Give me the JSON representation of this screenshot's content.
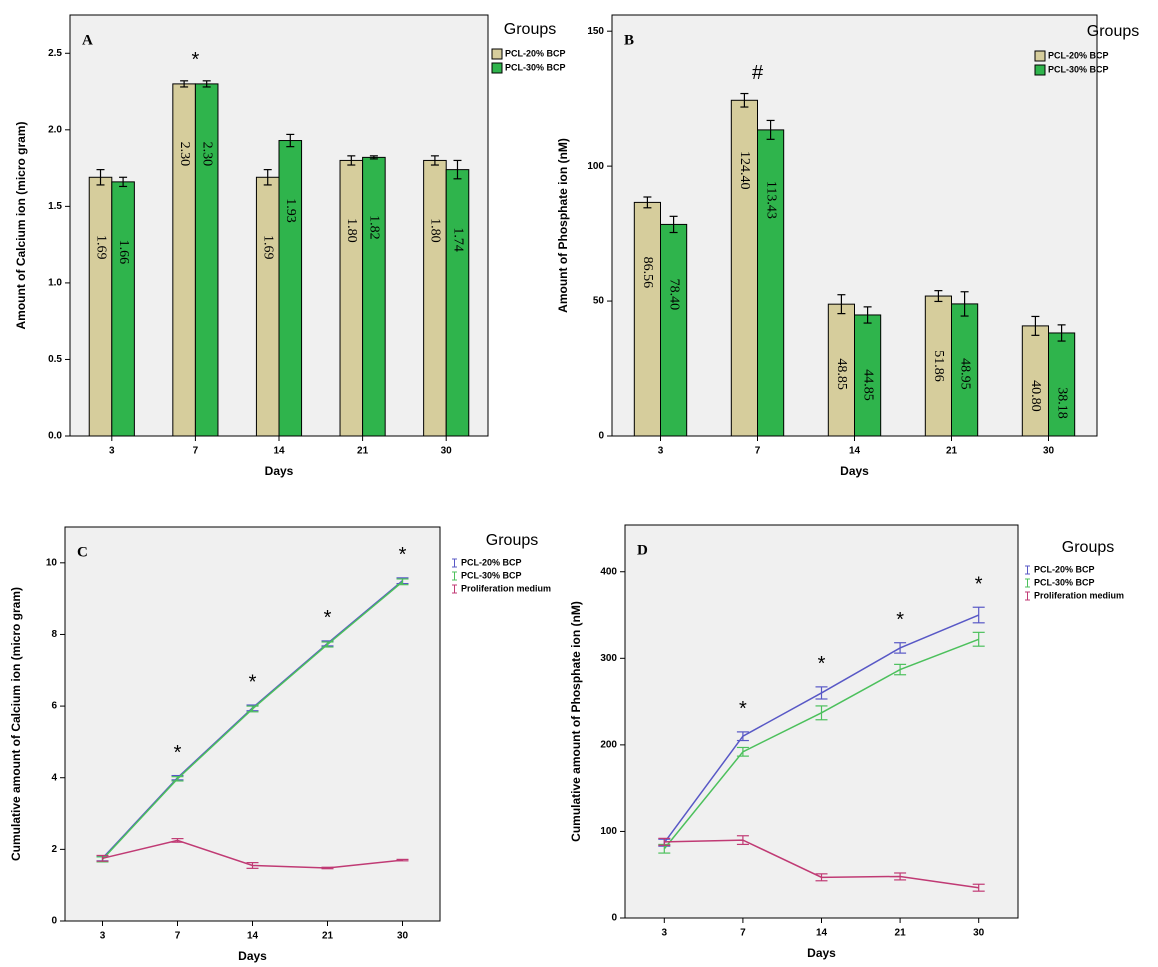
{
  "chart_data": [
    {
      "type": "bar",
      "label": "A",
      "x_label": "Days",
      "y_label": "Amount of Calcium ion (micro gram)",
      "legend_title": "Groups",
      "categories": [
        "3",
        "7",
        "14",
        "21",
        "30"
      ],
      "markers": [
        null,
        "*",
        null,
        null,
        null
      ],
      "series": [
        {
          "name": "PCL-20% BCP",
          "color": "#d6cd9c",
          "values": [
            1.69,
            2.3,
            1.69,
            1.8,
            1.8
          ],
          "value_labels": [
            "1.69",
            "2.30",
            "1.69",
            "1.80",
            "1.80"
          ],
          "errors": [
            0.05,
            0.02,
            0.05,
            0.03,
            0.03
          ]
        },
        {
          "name": "PCL-30% BCP",
          "color": "#2fb44c",
          "values": [
            1.66,
            2.3,
            1.93,
            1.82,
            1.74
          ],
          "value_labels": [
            "1.66",
            "2.30",
            "1.93",
            "1.82",
            "1.74"
          ],
          "errors": [
            0.03,
            0.02,
            0.04,
            0.01,
            0.06
          ]
        }
      ],
      "ylim": [
        0,
        2.75
      ],
      "yticks": [
        {
          "value": 0,
          "label": "0.0"
        },
        0.5,
        {
          "value": 1,
          "label": "1.0"
        },
        1.5,
        {
          "value": 2,
          "label": "2.0"
        },
        2.5
      ]
    },
    {
      "type": "bar",
      "label": "B",
      "x_label": "Days",
      "y_label": "Amount of Phosphate ion (nM)",
      "legend_title": "Groups",
      "categories": [
        "3",
        "7",
        "14",
        "21",
        "30"
      ],
      "markers": [
        null,
        "#",
        null,
        null,
        null
      ],
      "series": [
        {
          "name": "PCL-20% BCP",
          "color": "#d6cd9c",
          "values": [
            86.56,
            124.4,
            48.85,
            51.86,
            40.8
          ],
          "value_labels": [
            "86.56",
            "124.40",
            "48.85",
            "51.86",
            "40.80"
          ],
          "errors": [
            2,
            2.5,
            3.5,
            2,
            3.5
          ]
        },
        {
          "name": "PCL-30% BCP",
          "color": "#2fb44c",
          "values": [
            78.4,
            113.43,
            44.85,
            48.95,
            38.18
          ],
          "value_labels": [
            "78.40",
            "113.43",
            "44.85",
            "48.95",
            "38.18"
          ],
          "errors": [
            3,
            3.5,
            3,
            4.5,
            3
          ]
        }
      ],
      "ylim": [
        0,
        156
      ],
      "yticks": [
        0,
        50,
        100,
        150
      ]
    },
    {
      "type": "line",
      "label": "C",
      "x_label": "Days",
      "y_label": "Cumulative amount of Calcium ion (micro gram)",
      "legend_title": "Groups",
      "categories": [
        "3",
        "7",
        "14",
        "21",
        "30"
      ],
      "markers": [
        null,
        "*",
        "*",
        "*",
        "*"
      ],
      "series": [
        {
          "name": "PCL-20% BCP",
          "color": "#5858c6",
          "values": [
            1.75,
            4.0,
            5.95,
            7.75,
            9.5
          ],
          "errors": [
            0.07,
            0.06,
            0.08,
            0.07,
            0.08
          ]
        },
        {
          "name": "PCL-30% BCP",
          "color": "#4cc05c",
          "values": [
            1.72,
            3.97,
            5.92,
            7.72,
            9.47
          ],
          "errors": [
            0.07,
            0.06,
            0.08,
            0.07,
            0.08
          ]
        },
        {
          "name": "Proliferation medium",
          "color": "#c03a74",
          "values": [
            1.75,
            2.25,
            1.55,
            1.48,
            1.7
          ],
          "errors": [
            0.08,
            0.05,
            0.08,
            0.02,
            0.02
          ]
        }
      ],
      "ylim": [
        0,
        11
      ],
      "yticks": [
        0,
        2,
        4,
        6,
        8,
        10
      ]
    },
    {
      "type": "line",
      "label": "D",
      "x_label": "Days",
      "y_label": "Cumulative amount of Phosphate ion (nM)",
      "legend_title": "Groups",
      "categories": [
        "3",
        "7",
        "14",
        "21",
        "30"
      ],
      "markers": [
        null,
        "*",
        "*",
        "*",
        "*"
      ],
      "series": [
        {
          "name": "PCL-20% BCP",
          "color": "#5858c6",
          "values": [
            87,
            210,
            260,
            312,
            350
          ],
          "errors": [
            4,
            5,
            7,
            6,
            9
          ]
        },
        {
          "name": "PCL-30% BCP",
          "color": "#4cc05c",
          "values": [
            80,
            192,
            237,
            287,
            322
          ],
          "errors": [
            5,
            5,
            8,
            6,
            8
          ]
        },
        {
          "name": "Proliferation medium",
          "color": "#c03a74",
          "values": [
            88,
            90,
            47,
            48,
            35
          ],
          "errors": [
            4,
            5,
            4,
            4,
            4
          ]
        }
      ],
      "ylim": [
        0,
        454
      ],
      "yticks": [
        0,
        100,
        200,
        300,
        400
      ]
    }
  ]
}
